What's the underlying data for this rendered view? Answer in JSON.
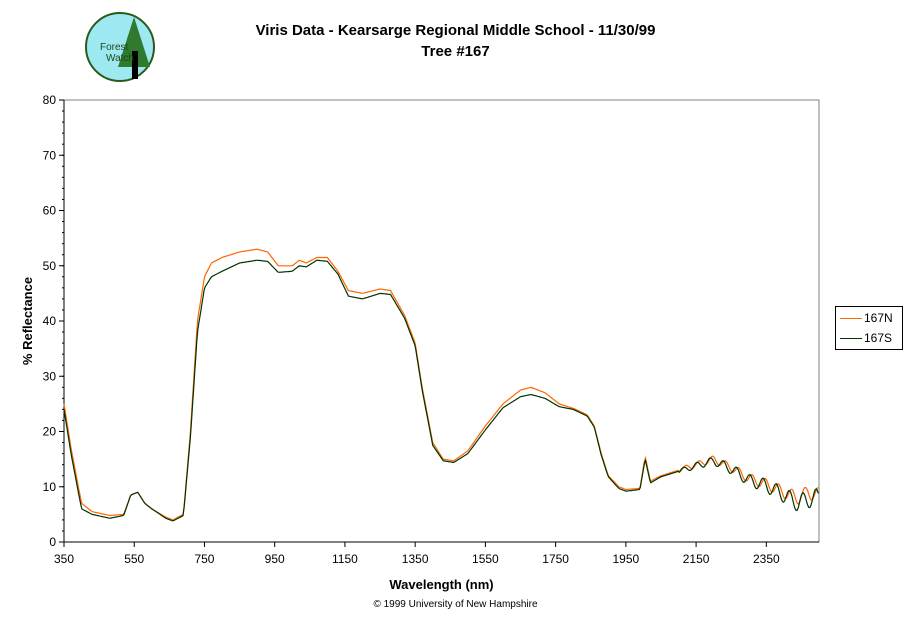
{
  "logo_text": "Forest Watch",
  "copyright": "© 1999 University of New Hampshire",
  "chart_data": {
    "type": "line",
    "title": "Viris Data - Kearsarge Regional Middle School - 11/30/99",
    "subtitle": "Tree #167",
    "xlabel": "Wavelength (nm)",
    "ylabel": "% Reflectance",
    "xlim": [
      350,
      2500
    ],
    "ylim": [
      0,
      80
    ],
    "xticks": [
      "350",
      "550",
      "750",
      "950",
      "1150",
      "1350",
      "1550",
      "1750",
      "1950",
      "2150",
      "2350"
    ],
    "yticks": [
      "0",
      "10",
      "20",
      "30",
      "40",
      "50",
      "60",
      "70",
      "80"
    ],
    "legend_position": "right",
    "series": [
      {
        "name": "167N",
        "color": "#ff6600",
        "x": [
          350,
          370,
          400,
          430,
          480,
          520,
          540,
          560,
          580,
          600,
          640,
          660,
          690,
          710,
          730,
          750,
          770,
          800,
          850,
          900,
          930,
          960,
          1000,
          1020,
          1040,
          1070,
          1100,
          1130,
          1160,
          1200,
          1250,
          1280,
          1320,
          1350,
          1370,
          1400,
          1430,
          1460,
          1500,
          1550,
          1600,
          1650,
          1680,
          1720,
          1760,
          1800,
          1840,
          1860,
          1880,
          1900,
          1930,
          1950,
          1990,
          2005,
          2020,
          2050,
          2100,
          2150,
          2200,
          2250,
          2300,
          2350,
          2400,
          2440,
          2470,
          2500
        ],
        "y": [
          25,
          17,
          7,
          5.5,
          4.8,
          5,
          8.5,
          9,
          7,
          6,
          4.5,
          4,
          5,
          20,
          40,
          48,
          50.5,
          51.5,
          52.5,
          53,
          52.5,
          50,
          50,
          51,
          50.5,
          51.5,
          51.5,
          49,
          45.5,
          45,
          45.8,
          45.5,
          41,
          36,
          28,
          18,
          15,
          14.7,
          16.5,
          21,
          25,
          27.5,
          28,
          27,
          25,
          24.2,
          23,
          21,
          16,
          12,
          10,
          9.5,
          9.7,
          15.5,
          11,
          12,
          13,
          14,
          15,
          13.5,
          11.5,
          10.5,
          9,
          8,
          9,
          8.5
        ]
      },
      {
        "name": "167S",
        "color": "#003300",
        "x": [
          350,
          370,
          400,
          430,
          480,
          520,
          540,
          560,
          580,
          600,
          640,
          660,
          690,
          710,
          730,
          750,
          770,
          800,
          850,
          900,
          930,
          960,
          1000,
          1020,
          1040,
          1070,
          1100,
          1130,
          1160,
          1200,
          1250,
          1280,
          1320,
          1350,
          1370,
          1400,
          1430,
          1460,
          1500,
          1550,
          1600,
          1650,
          1680,
          1720,
          1760,
          1800,
          1840,
          1860,
          1880,
          1900,
          1930,
          1950,
          1990,
          2005,
          2020,
          2050,
          2100,
          2150,
          2200,
          2250,
          2300,
          2350,
          2400,
          2440,
          2470,
          2500
        ],
        "y": [
          24,
          16,
          6,
          5,
          4.3,
          4.8,
          8.5,
          9,
          7,
          6,
          4.3,
          3.8,
          4.8,
          19,
          38,
          46,
          48,
          49,
          50.5,
          51,
          50.8,
          48.8,
          49,
          50,
          49.8,
          51,
          50.8,
          48.5,
          44.5,
          44,
          45,
          44.8,
          40.5,
          35.5,
          27.5,
          17.5,
          14.7,
          14.4,
          16,
          20.3,
          24.3,
          26.3,
          26.7,
          26,
          24.5,
          24,
          22.8,
          20.8,
          15.7,
          11.8,
          9.7,
          9.2,
          9.5,
          15,
          10.7,
          11.8,
          12.8,
          13.8,
          14.7,
          13.2,
          11.2,
          10.2,
          8.5,
          7,
          7.8,
          8
        ]
      }
    ]
  }
}
